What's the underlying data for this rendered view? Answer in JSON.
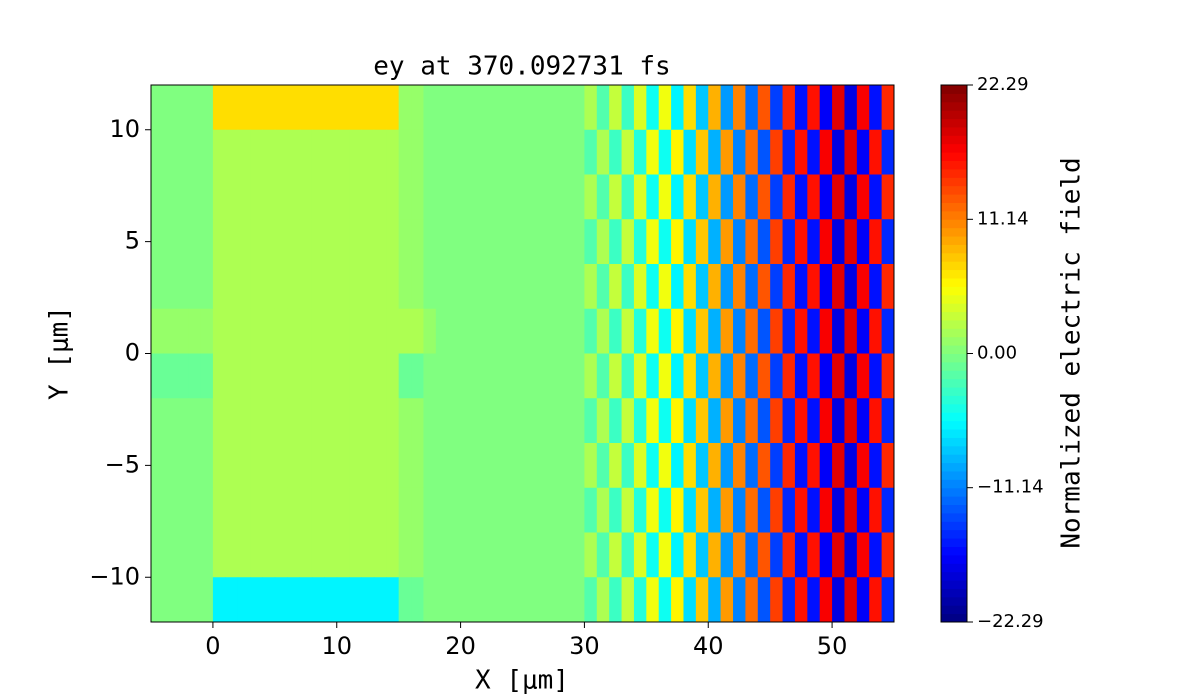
{
  "chart_data": {
    "type": "heatmap",
    "title": "ey at 370.092731 fs",
    "x_label": "X [μm]",
    "y_label": "Y [μm]",
    "colorbar_label": "Normalized electric field",
    "colormap": "jet",
    "xlim": [
      -5,
      55
    ],
    "ylim": [
      -12,
      12
    ],
    "xticks": [
      0,
      10,
      20,
      30,
      40,
      50
    ],
    "yticks": [
      {
        "value": -10,
        "label": "−10"
      },
      {
        "value": -5,
        "label": "−5"
      },
      0,
      5,
      10
    ],
    "zlim": [
      -22.29,
      22.29
    ],
    "zticks": [
      {
        "value": -22.29,
        "label": "−22.29"
      },
      {
        "value": -11.14,
        "label": "−11.14"
      },
      {
        "value": 0,
        "label": "0.00"
      },
      {
        "value": 11.14,
        "label": "11.14"
      },
      {
        "value": 22.29,
        "label": "22.29"
      }
    ],
    "x": [
      -4.5,
      -3.5,
      -2.5,
      -1.5,
      -0.5,
      0.5,
      1.5,
      2.5,
      3.5,
      4.5,
      5.5,
      6.5,
      7.5,
      8.5,
      9.5,
      10.5,
      11.5,
      12.5,
      13.5,
      14.5,
      15.5,
      16.5,
      17.5,
      18.5,
      19.5,
      20.5,
      21.5,
      22.5,
      23.5,
      24.5,
      25.5,
      26.5,
      27.5,
      28.5,
      29.5,
      30.5,
      31.5,
      32.5,
      33.5,
      34.5,
      35.5,
      36.5,
      37.5,
      38.5,
      39.5,
      40.5,
      41.5,
      42.5,
      43.5,
      44.5,
      45.5,
      46.5,
      47.5,
      48.5,
      49.5,
      50.5,
      51.5,
      52.5,
      53.5,
      54.5
    ],
    "y": [
      11,
      9,
      7,
      5,
      3,
      1,
      -1,
      -3,
      -5,
      -7,
      -9,
      -11
    ],
    "z": [
      [
        0,
        0,
        0,
        0,
        0,
        7,
        7,
        7,
        7,
        7,
        7,
        7,
        7,
        7,
        7,
        7,
        7,
        7,
        7,
        7,
        1,
        1,
        0,
        0,
        0,
        0,
        0,
        0,
        0,
        0,
        0,
        0,
        0,
        0,
        0,
        2,
        -2,
        3,
        -3,
        4,
        -5,
        5,
        -6,
        7,
        -8,
        9,
        -10,
        11,
        -12,
        13,
        -14,
        15,
        -16,
        16,
        -17,
        18,
        -18,
        17,
        -16,
        15
      ],
      [
        0,
        0,
        0,
        0,
        0,
        2,
        2,
        2,
        2,
        2,
        2,
        2,
        2,
        2,
        2,
        2,
        2,
        2,
        2,
        2,
        1,
        1,
        0,
        0,
        0,
        0,
        0,
        0,
        0,
        0,
        0,
        0,
        0,
        0,
        0,
        -2,
        2,
        -3,
        3,
        -4,
        5,
        -5,
        6,
        -7,
        8,
        -9,
        10,
        -11,
        12,
        -13,
        14,
        -15,
        16,
        -16,
        17,
        -18,
        18,
        -17,
        16,
        -15
      ],
      [
        0,
        0,
        0,
        0,
        0,
        2,
        2,
        2,
        2,
        2,
        2,
        2,
        2,
        2,
        2,
        2,
        2,
        2,
        2,
        2,
        1,
        1,
        0,
        0,
        0,
        0,
        0,
        0,
        0,
        0,
        0,
        0,
        0,
        0,
        0,
        2,
        -2,
        3,
        -3,
        4,
        -5,
        5,
        -6,
        7,
        -8,
        9,
        -10,
        11,
        -12,
        13,
        -14,
        15,
        -16,
        16,
        -17,
        18,
        -18,
        17,
        -16,
        15
      ],
      [
        0,
        0,
        0,
        0,
        0,
        2,
        2,
        2,
        2,
        2,
        2,
        2,
        2,
        2,
        2,
        2,
        2,
        2,
        2,
        2,
        1,
        1,
        0,
        0,
        0,
        0,
        0,
        0,
        0,
        0,
        0,
        0,
        0,
        0,
        0,
        -2,
        2,
        -3,
        3,
        -4,
        5,
        -5,
        6,
        -7,
        8,
        -9,
        10,
        -11,
        12,
        -13,
        14,
        -15,
        16,
        -16,
        17,
        -18,
        18,
        -17,
        16,
        -15
      ],
      [
        0,
        0,
        0,
        0,
        0,
        2,
        2,
        2,
        2,
        2,
        2,
        2,
        2,
        2,
        2,
        2,
        2,
        2,
        2,
        2,
        1,
        1,
        0,
        0,
        0,
        0,
        0,
        0,
        0,
        0,
        0,
        0,
        0,
        0,
        0,
        2,
        -2,
        3,
        -3,
        4,
        -5,
        5,
        -6,
        7,
        -8,
        9,
        -10,
        11,
        -12,
        13,
        -14,
        15,
        -16,
        16,
        -17,
        18,
        -18,
        17,
        -16,
        15
      ],
      [
        1,
        1,
        1,
        1,
        1,
        2,
        2,
        2,
        2,
        2,
        2,
        2,
        2,
        2,
        2,
        2,
        2,
        2,
        2,
        2,
        2,
        2,
        1,
        0,
        0,
        0,
        0,
        0,
        0,
        0,
        0,
        0,
        0,
        0,
        0,
        -2,
        2,
        -3,
        3,
        -4,
        5,
        -5,
        6,
        -7,
        8,
        -9,
        10,
        -11,
        12,
        -13,
        14,
        -15,
        16,
        -16,
        17,
        -18,
        18,
        -17,
        16,
        -15
      ],
      [
        -1,
        -1,
        -1,
        -1,
        -1,
        2,
        2,
        2,
        2,
        2,
        2,
        2,
        2,
        2,
        2,
        2,
        2,
        2,
        2,
        2,
        -1,
        -1,
        0,
        0,
        0,
        0,
        0,
        0,
        0,
        0,
        0,
        0,
        0,
        0,
        0,
        2,
        -2,
        3,
        -3,
        4,
        -5,
        5,
        -6,
        7,
        -8,
        9,
        -10,
        11,
        -12,
        13,
        -14,
        15,
        -16,
        16,
        -17,
        18,
        -18,
        17,
        -16,
        15
      ],
      [
        0,
        0,
        0,
        0,
        0,
        2,
        2,
        2,
        2,
        2,
        2,
        2,
        2,
        2,
        2,
        2,
        2,
        2,
        2,
        2,
        1,
        1,
        0,
        0,
        0,
        0,
        0,
        0,
        0,
        0,
        0,
        0,
        0,
        0,
        0,
        -2,
        2,
        -3,
        3,
        -4,
        5,
        -5,
        6,
        -7,
        8,
        -9,
        10,
        -11,
        12,
        -13,
        14,
        -15,
        16,
        -16,
        17,
        -18,
        18,
        -17,
        16,
        -15
      ],
      [
        0,
        0,
        0,
        0,
        0,
        2,
        2,
        2,
        2,
        2,
        2,
        2,
        2,
        2,
        2,
        2,
        2,
        2,
        2,
        2,
        1,
        1,
        0,
        0,
        0,
        0,
        0,
        0,
        0,
        0,
        0,
        0,
        0,
        0,
        0,
        2,
        -2,
        3,
        -3,
        4,
        -5,
        5,
        -6,
        7,
        -8,
        9,
        -10,
        11,
        -12,
        13,
        -14,
        15,
        -16,
        16,
        -17,
        18,
        -18,
        17,
        -16,
        15
      ],
      [
        0,
        0,
        0,
        0,
        0,
        2,
        2,
        2,
        2,
        2,
        2,
        2,
        2,
        2,
        2,
        2,
        2,
        2,
        2,
        2,
        1,
        1,
        0,
        0,
        0,
        0,
        0,
        0,
        0,
        0,
        0,
        0,
        0,
        0,
        0,
        -2,
        2,
        -3,
        3,
        -4,
        5,
        -5,
        6,
        -7,
        8,
        -9,
        10,
        -11,
        12,
        -13,
        14,
        -15,
        16,
        -16,
        17,
        -18,
        18,
        -17,
        16,
        -15
      ],
      [
        0,
        0,
        0,
        0,
        0,
        2,
        2,
        2,
        2,
        2,
        2,
        2,
        2,
        2,
        2,
        2,
        2,
        2,
        2,
        2,
        1,
        1,
        0,
        0,
        0,
        0,
        0,
        0,
        0,
        0,
        0,
        0,
        0,
        0,
        0,
        2,
        -2,
        3,
        -3,
        4,
        -5,
        5,
        -6,
        7,
        -8,
        9,
        -10,
        11,
        -12,
        13,
        -14,
        15,
        -16,
        16,
        -17,
        18,
        -18,
        17,
        -16,
        15
      ],
      [
        0,
        0,
        0,
        0,
        0,
        -6,
        -6,
        -6,
        -6,
        -6,
        -6,
        -6,
        -6,
        -6,
        -6,
        -6,
        -6,
        -6,
        -6,
        -6,
        -1,
        -1,
        0,
        0,
        0,
        0,
        0,
        0,
        0,
        0,
        0,
        0,
        0,
        0,
        0,
        -2,
        2,
        -3,
        3,
        -4,
        5,
        -5,
        6,
        -7,
        8,
        -9,
        10,
        -11,
        12,
        -13,
        14,
        -15,
        16,
        -16,
        17,
        -18,
        18,
        -17,
        16,
        -15
      ]
    ]
  }
}
